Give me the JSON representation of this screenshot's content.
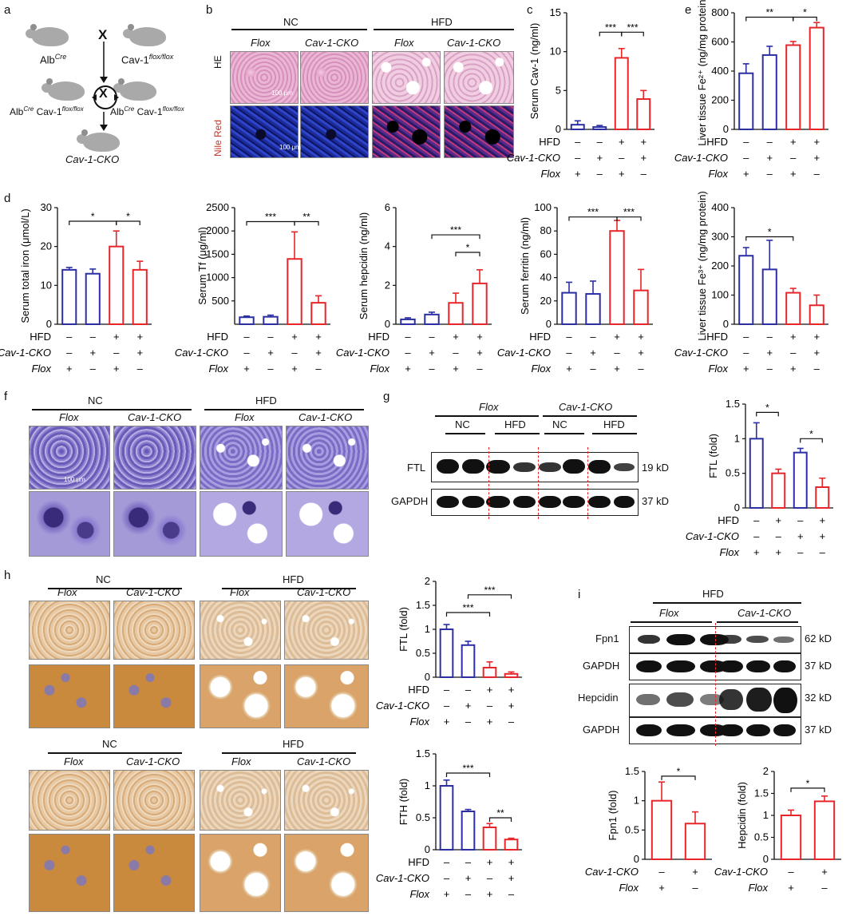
{
  "panel_labels": {
    "a": "a",
    "b": "b",
    "c": "c",
    "d": "d",
    "e": "e",
    "f": "f",
    "g": "g",
    "h": "h",
    "i": "i"
  },
  "colors": {
    "blue": "#2b2fa3",
    "red": "#e8262a",
    "dash": "#e8262a"
  },
  "panel_a": {
    "alb": "Alb",
    "cre": "Cre",
    "cav": "Cav-1",
    "flox_sup": "flox/flox",
    "cross": "X",
    "left_geno": "Alb",
    "right_geno": "Alb",
    "cko": "Cav-1-CKO"
  },
  "panel_b": {
    "nc": "NC",
    "hfd": "HFD",
    "flox": "Flox",
    "cko": "Cav-1-CKO",
    "he": "HE",
    "nile": "Nile Red",
    "scale1": "100 μm",
    "scale2": "100 μm"
  },
  "factor_rows": {
    "hfd": "HFD",
    "cko": "Cav-1-CKO",
    "flox": "Flox"
  },
  "factors4": {
    "hfd": [
      "–",
      "–",
      "+",
      "+"
    ],
    "cko": [
      "–",
      "+",
      "–",
      "+"
    ],
    "flox": [
      "+",
      "–",
      "+",
      "–"
    ]
  },
  "factors2_i": {
    "cko": [
      "–",
      "+"
    ],
    "flox": [
      "+",
      "–"
    ]
  },
  "chart_data": [
    {
      "id": "c",
      "type": "bar",
      "ylabel": "Serum Cav-1 (ng/ml)",
      "ylim": [
        0,
        15
      ],
      "yticks": [
        0,
        5,
        10,
        15
      ],
      "values": [
        0.6,
        0.3,
        9.2,
        3.9
      ],
      "errors": [
        0.5,
        0.2,
        1.2,
        1.1
      ],
      "colors": [
        "blue",
        "blue",
        "red",
        "red"
      ],
      "sig": [
        {
          "from": 1,
          "to": 2,
          "label": "***",
          "y": 12.5
        },
        {
          "from": 2,
          "to": 3,
          "label": "***",
          "y": 12.5
        }
      ]
    },
    {
      "id": "e1",
      "type": "bar",
      "ylabel": "Liver tissue Fe²⁺ (ng/mg protein)",
      "ylim": [
        0,
        800
      ],
      "yticks": [
        0,
        200,
        400,
        600,
        800
      ],
      "values": [
        385,
        510,
        578,
        698
      ],
      "errors": [
        65,
        60,
        25,
        35
      ],
      "colors": [
        "blue",
        "blue",
        "red",
        "red"
      ],
      "sig": [
        {
          "from": 0,
          "to": 2,
          "label": "**",
          "y": 770
        },
        {
          "from": 2,
          "to": 3,
          "label": "*",
          "y": 770
        }
      ]
    },
    {
      "id": "d1",
      "type": "bar",
      "ylabel": "Serum total iron (μmol/L)",
      "ylim": [
        0,
        30
      ],
      "yticks": [
        0,
        10,
        20,
        30
      ],
      "values": [
        14,
        13,
        20,
        14
      ],
      "errors": [
        0.6,
        1.2,
        4,
        2.2
      ],
      "colors": [
        "blue",
        "blue",
        "red",
        "red"
      ],
      "sig": [
        {
          "from": 0,
          "to": 2,
          "label": "*",
          "y": 26.5
        },
        {
          "from": 2,
          "to": 3,
          "label": "*",
          "y": 26.5
        }
      ]
    },
    {
      "id": "d2",
      "type": "bar",
      "ylabel": "Serum Tf (μg/ml)",
      "ylim": [
        0,
        2500
      ],
      "yticks": [
        500,
        1000,
        1500,
        2000,
        2500
      ],
      "values": [
        150,
        160,
        1400,
        460
      ],
      "errors": [
        25,
        35,
        580,
        150
      ],
      "colors": [
        "blue",
        "blue",
        "red",
        "red"
      ],
      "sig": [
        {
          "from": 0,
          "to": 2,
          "label": "***",
          "y": 2200
        },
        {
          "from": 2,
          "to": 3,
          "label": "**",
          "y": 2200
        }
      ]
    },
    {
      "id": "d3",
      "type": "bar",
      "ylabel": "Serum hepcidin (ng/ml)",
      "ylim": [
        0,
        6
      ],
      "yticks": [
        0,
        2,
        4,
        6
      ],
      "values": [
        0.25,
        0.5,
        1.1,
        2.1
      ],
      "errors": [
        0.08,
        0.12,
        0.5,
        0.7
      ],
      "colors": [
        "blue",
        "blue",
        "red",
        "red"
      ],
      "sig": [
        {
          "from": 1,
          "to": 3,
          "label": "***",
          "y": 4.6
        },
        {
          "from": 2,
          "to": 3,
          "label": "*",
          "y": 3.7
        }
      ]
    },
    {
      "id": "d4",
      "type": "bar",
      "ylabel": "Serum ferritin (ng/ml)",
      "ylim": [
        0,
        100
      ],
      "yticks": [
        0,
        20,
        40,
        60,
        80,
        100
      ],
      "values": [
        27,
        26,
        80,
        29
      ],
      "errors": [
        9,
        11,
        9,
        18
      ],
      "colors": [
        "blue",
        "blue",
        "red",
        "red"
      ],
      "sig": [
        {
          "from": 0,
          "to": 2,
          "label": "***",
          "y": 92
        },
        {
          "from": 2,
          "to": 3,
          "label": "***",
          "y": 92
        }
      ]
    },
    {
      "id": "e2",
      "type": "bar",
      "ylabel": "Liver tissue Fe³⁺ (ng/mg protein)",
      "ylim": [
        0,
        400
      ],
      "yticks": [
        0,
        100,
        200,
        300,
        400
      ],
      "values": [
        235,
        188,
        108,
        65
      ],
      "errors": [
        28,
        100,
        15,
        35
      ],
      "colors": [
        "blue",
        "blue",
        "red",
        "red"
      ],
      "sig": [
        {
          "from": 0,
          "to": 2,
          "label": "*",
          "y": 300
        }
      ]
    },
    {
      "id": "g",
      "type": "bar",
      "ylabel": "FTL (fold)",
      "ylim": [
        0,
        1.5
      ],
      "yticks": [
        0,
        0.5,
        1.0,
        1.5
      ],
      "values": [
        1.0,
        0.5,
        0.8,
        0.3
      ],
      "errors": [
        0.23,
        0.06,
        0.06,
        0.13
      ],
      "colors": [
        "blue",
        "red",
        "blue",
        "red"
      ],
      "sig": [
        {
          "from": 0,
          "to": 1,
          "label": "*",
          "y": 1.38
        },
        {
          "from": 2,
          "to": 3,
          "label": "*",
          "y": 1.0
        }
      ],
      "factors": {
        "hfd": [
          "–",
          "+",
          "–",
          "+"
        ],
        "cko": [
          "–",
          "–",
          "+",
          "+"
        ],
        "flox": [
          "+",
          "+",
          "–",
          "–"
        ]
      }
    },
    {
      "id": "h1",
      "type": "bar",
      "ylabel": "FTL (fold)",
      "ylim": [
        0,
        2.0
      ],
      "yticks": [
        0,
        0.5,
        1.0,
        1.5,
        2.0
      ],
      "values": [
        1.0,
        0.67,
        0.2,
        0.07
      ],
      "errors": [
        0.1,
        0.08,
        0.12,
        0.04
      ],
      "colors": [
        "blue",
        "blue",
        "red",
        "red"
      ],
      "sig": [
        {
          "from": 0,
          "to": 2,
          "label": "***",
          "y": 1.35
        },
        {
          "from": 1,
          "to": 3,
          "label": "***",
          "y": 1.72
        }
      ]
    },
    {
      "id": "h2",
      "type": "bar",
      "ylabel": "FTH (fold)",
      "ylim": [
        0,
        1.5
      ],
      "yticks": [
        0,
        0.5,
        1.0,
        1.5
      ],
      "values": [
        1.0,
        0.6,
        0.35,
        0.16
      ],
      "errors": [
        0.09,
        0.03,
        0.06,
        0.02
      ],
      "colors": [
        "blue",
        "blue",
        "red",
        "red"
      ],
      "sig": [
        {
          "from": 0,
          "to": 2,
          "label": "***",
          "y": 1.2
        },
        {
          "from": 2,
          "to": 3,
          "label": "**",
          "y": 0.5
        }
      ]
    },
    {
      "id": "i1",
      "type": "bar",
      "ylabel": "Fpn1 (fold)",
      "ylim": [
        0,
        1.5
      ],
      "yticks": [
        0,
        0.5,
        1.0,
        1.5
      ],
      "values": [
        1.0,
        0.61
      ],
      "errors": [
        0.32,
        0.2
      ],
      "colors": [
        "red",
        "red"
      ],
      "sig": [
        {
          "from": 0,
          "to": 1,
          "label": "*",
          "y": 1.42
        }
      ]
    },
    {
      "id": "i2",
      "type": "bar",
      "ylabel": "Hepcidin (fold)",
      "ylim": [
        0,
        2.0
      ],
      "yticks": [
        0,
        0.5,
        1.0,
        1.5,
        2.0
      ],
      "values": [
        1.0,
        1.32
      ],
      "errors": [
        0.12,
        0.12
      ],
      "colors": [
        "red",
        "red"
      ],
      "sig": [
        {
          "from": 0,
          "to": 1,
          "label": "*",
          "y": 1.62
        }
      ]
    }
  ],
  "panel_f": {
    "nc": "NC",
    "hfd": "HFD",
    "flox": "Flox",
    "cko": "Cav-1-CKO",
    "scale": "100 μm"
  },
  "panel_g": {
    "flox": "Flox",
    "cko": "Cav-1-CKO",
    "nc": "NC",
    "hfd": "HFD",
    "ftl": "FTL",
    "gapdh": "GAPDH",
    "kd19": "19 kD",
    "kd37": "37 kD"
  },
  "panel_h": {
    "nc": "NC",
    "hfd": "HFD",
    "flox": "Flox",
    "cko": "Cav-1-CKO"
  },
  "panel_i": {
    "hfd": "HFD",
    "flox": "Flox",
    "cko": "Cav-1-CKO",
    "fpn1": "Fpn1",
    "gapdh": "GAPDH",
    "hepcidin": "Hepcidin",
    "kd62": "62 kD",
    "kd37": "37 kD",
    "kd32": "32 kD",
    "kd37b": "37 kD"
  }
}
